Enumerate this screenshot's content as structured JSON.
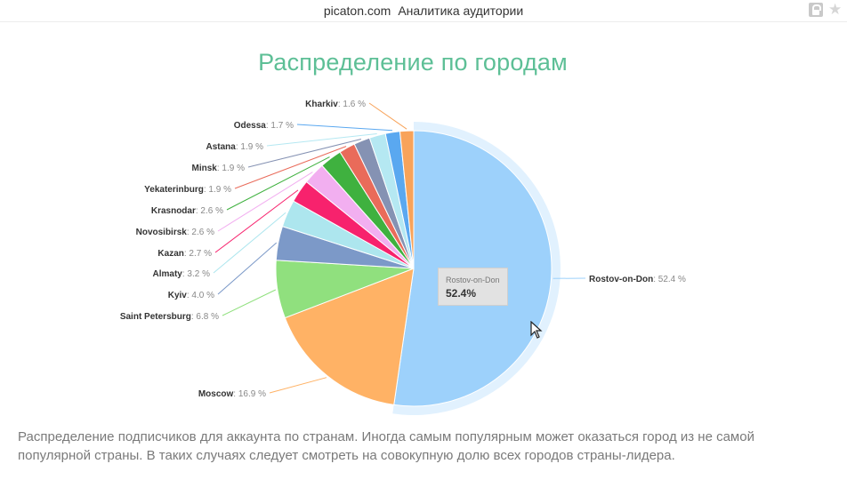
{
  "header": {
    "domain": "picaton.com",
    "title": "Аналитика аудитории",
    "lock_icon": "lock-icon",
    "star_icon": "star-icon"
  },
  "caption": "Распределение подписчиков для аккаунта по странам. Иногда самым популярным может оказаться город из не самой популярной страны. В таких случаях следует смотреть на совокупную долю всех городов страны-лидера.",
  "chart_data": {
    "type": "pie",
    "title": "Распределение по городам",
    "unit": "%",
    "start_angle_deg": 0,
    "direction": "clockwise",
    "highlighted": "Rostov-on-Don",
    "slices": [
      {
        "name": "Rostov-on-Don",
        "value": 52.4,
        "value_label": "52.4 %",
        "color": "#9dd1fb"
      },
      {
        "name": "Moscow",
        "value": 16.9,
        "value_label": "16.9 %",
        "color": "#ffb265"
      },
      {
        "name": "Saint Petersburg",
        "value": 6.8,
        "value_label": "6.8 %",
        "color": "#90e07e"
      },
      {
        "name": "Kyiv",
        "value": 4.0,
        "value_label": "4.0 %",
        "color": "#7c99c8"
      },
      {
        "name": "Almaty",
        "value": 3.2,
        "value_label": "3.2 %",
        "color": "#ade6ee"
      },
      {
        "name": "Kazan",
        "value": 2.7,
        "value_label": "2.7 %",
        "color": "#f7226d"
      },
      {
        "name": "Novosibirsk",
        "value": 2.6,
        "value_label": "2.6 %",
        "color": "#f2aff0"
      },
      {
        "name": "Krasnodar",
        "value": 2.6,
        "value_label": "2.6 %",
        "color": "#3fb13f"
      },
      {
        "name": "Yekaterinburg",
        "value": 1.9,
        "value_label": "1.9 %",
        "color": "#e96b5a"
      },
      {
        "name": "Minsk",
        "value": 1.9,
        "value_label": "1.9 %",
        "color": "#8592b3"
      },
      {
        "name": "Astana",
        "value": 1.9,
        "value_label": "1.9 %",
        "color": "#b5e8f2"
      },
      {
        "name": "Odessa",
        "value": 1.7,
        "value_label": "1.7 %",
        "color": "#5aa8f0"
      },
      {
        "name": "Kharkiv",
        "value": 1.6,
        "value_label": "1.6 %",
        "color": "#f8a35a"
      }
    ],
    "tooltip": {
      "name": "Rostov-on-Don",
      "value": "52.4%"
    }
  }
}
